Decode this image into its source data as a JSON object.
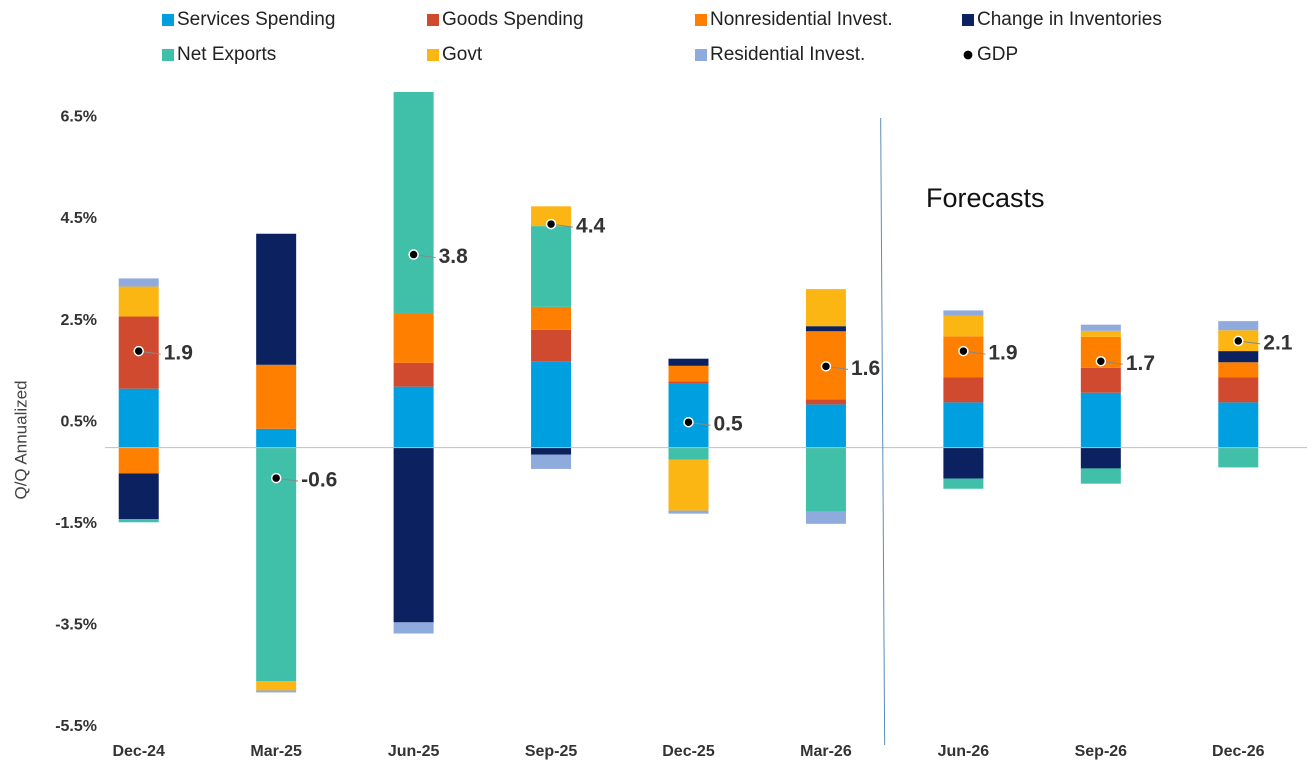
{
  "chart_data": {
    "type": "bar",
    "stacked": true,
    "y_label": "Q/Q Annualized",
    "annotation": "Forecasts",
    "categories": [
      "Dec-24",
      "Mar-25",
      "Jun-25",
      "Sep-25",
      "Dec-25",
      "Mar-26",
      "Jun-26",
      "Sep-26",
      "Dec-26"
    ],
    "series": [
      {
        "name": "Services Spending",
        "color": "#00a0e0",
        "values": [
          1.16,
          0.37,
          1.2,
          1.69,
          1.26,
          0.85,
          0.89,
          1.08,
          0.89
        ]
      },
      {
        "name": "Goods Spending",
        "color": "#d04a30",
        "values": [
          1.42,
          0,
          0.47,
          0.63,
          0.04,
          0.1,
          0.49,
          0.49,
          0.49
        ]
      },
      {
        "name": "Nonresidential Invest.",
        "color": "#ff7f00",
        "values": [
          -0.51,
          1.26,
          0.98,
          0.45,
          0.31,
          1.34,
          0.81,
          0.61,
          0.3
        ]
      },
      {
        "name": "Change in Inventories",
        "color": "#0b2160",
        "values": [
          -0.9,
          2.58,
          -3.44,
          -0.14,
          0.14,
          0.1,
          -0.61,
          -0.41,
          0.22
        ]
      },
      {
        "name": "Net Exports",
        "color": "#40c0a8",
        "values": [
          -0.06,
          -4.6,
          4.8,
          1.59,
          -0.24,
          -1.26,
          -0.2,
          -0.3,
          -0.39
        ]
      },
      {
        "name": "Govt",
        "color": "#fbb614",
        "values": [
          0.59,
          -0.18,
          0,
          0.39,
          -1.0,
          0.73,
          0.41,
          0.12,
          0.41
        ]
      },
      {
        "name": "Residential Invest.",
        "color": "#8faadc",
        "values": [
          0.16,
          -0.04,
          -0.22,
          -0.28,
          -0.06,
          -0.24,
          0.1,
          0.12,
          0.18
        ]
      }
    ],
    "gdp": {
      "name": "GDP",
      "color": "#000000",
      "values": [
        1.9,
        -0.6,
        3.8,
        4.4,
        0.5,
        1.6,
        1.9,
        1.7,
        2.1
      ]
    },
    "ylim": [
      -5.5,
      7.0
    ],
    "yticks": [
      {
        "value": -5.5,
        "label": "-5.5%"
      },
      {
        "value": -3.5,
        "label": "-3.5%"
      },
      {
        "value": -1.5,
        "label": "-1.5%"
      },
      {
        "value": 0.5,
        "label": "0.5%"
      },
      {
        "value": 2.5,
        "label": "2.5%"
      },
      {
        "value": 4.5,
        "label": "4.5%"
      },
      {
        "value": 6.5,
        "label": "6.5%"
      }
    ],
    "forecast_start": "Jun-26",
    "grid": false
  }
}
